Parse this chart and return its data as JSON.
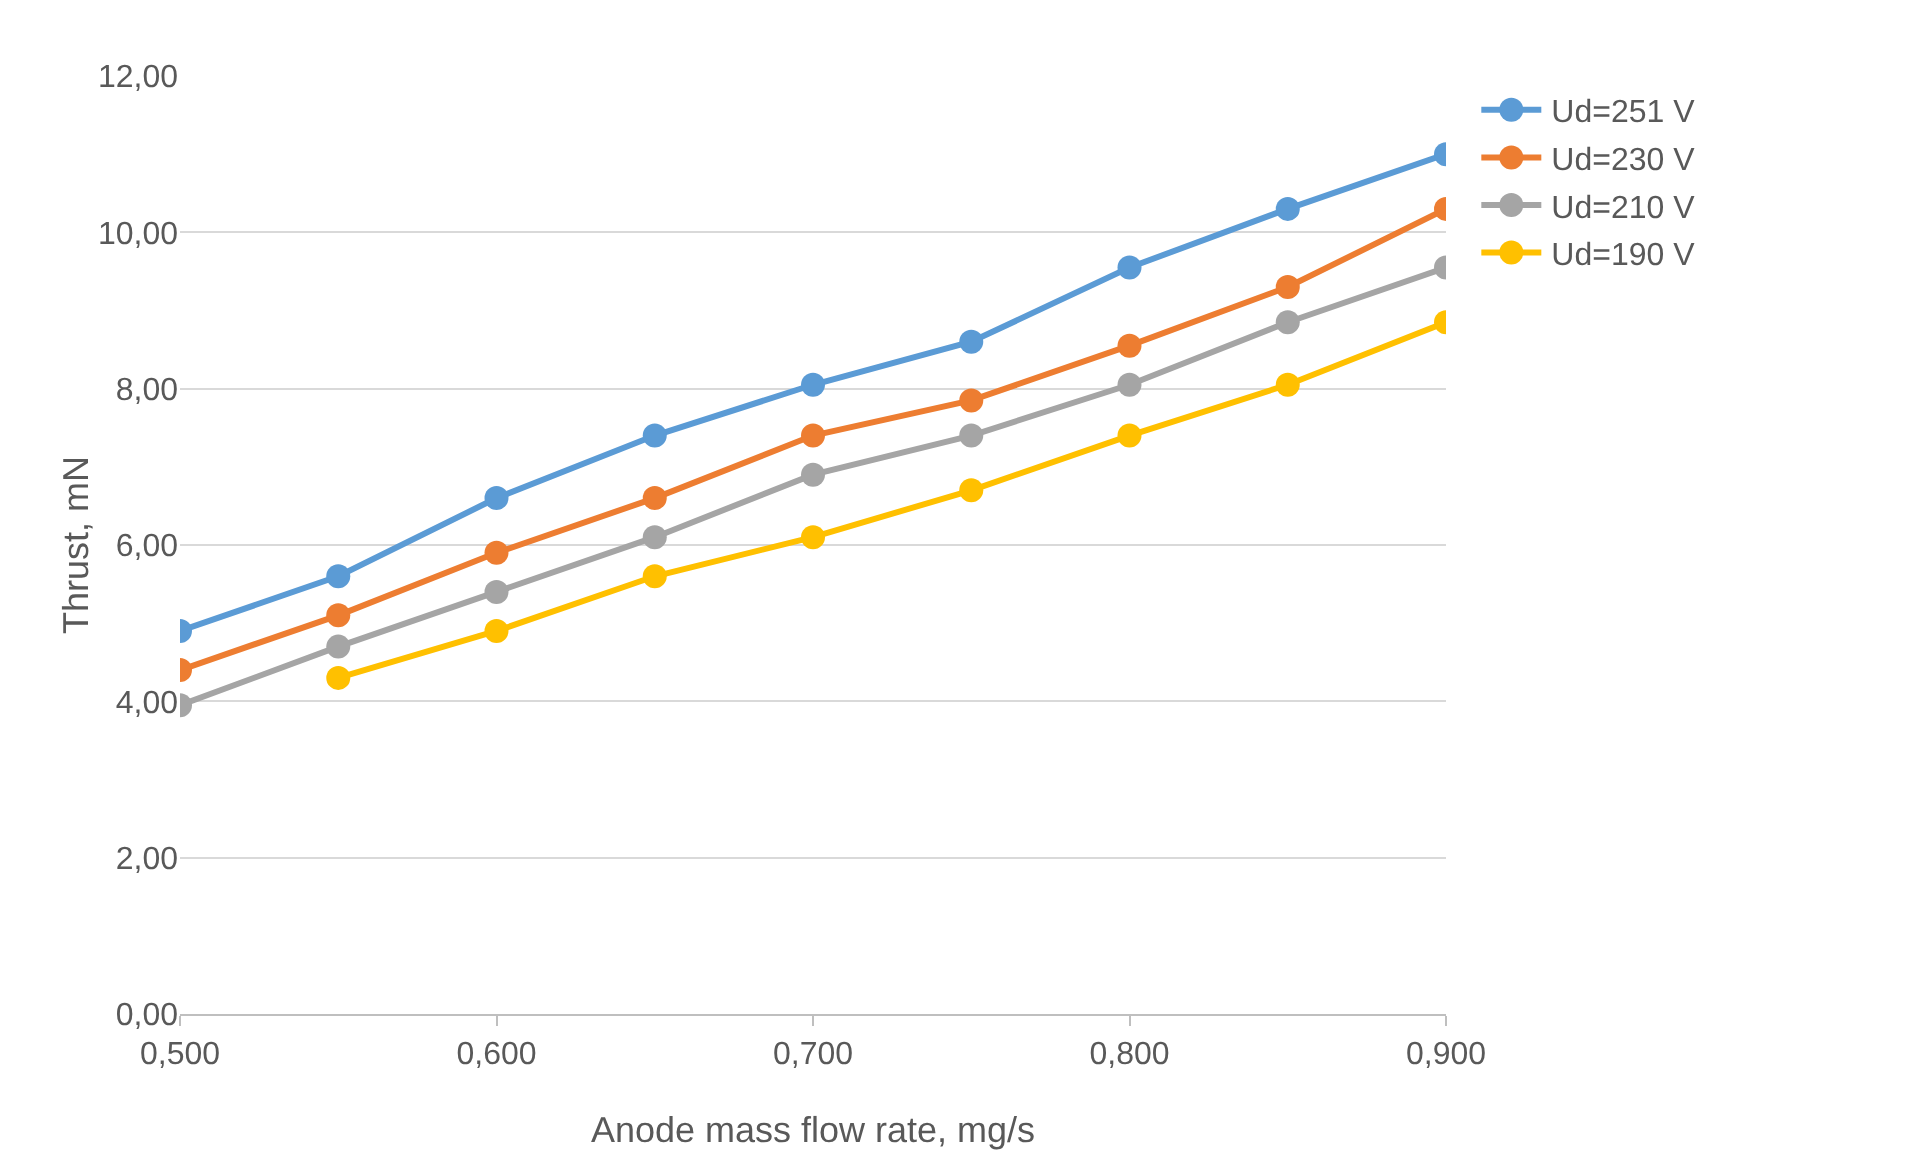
{
  "chart_data": {
    "type": "line",
    "xlabel": "Anode mass flow rate, mg/s",
    "ylabel": "Thrust, mN",
    "x": [
      0.5,
      0.55,
      0.6,
      0.65,
      0.7,
      0.75,
      0.8,
      0.85,
      0.9
    ],
    "series": [
      {
        "name": "Ud=251 V",
        "color": "#5b9bd5",
        "values": [
          4.9,
          5.6,
          6.6,
          7.4,
          8.05,
          8.6,
          9.55,
          10.3,
          11.0
        ]
      },
      {
        "name": "Ud=230 V",
        "color": "#ed7d31",
        "values": [
          4.4,
          5.1,
          5.9,
          6.6,
          7.4,
          7.85,
          8.55,
          9.3,
          10.3
        ]
      },
      {
        "name": "Ud=210 V",
        "color": "#a5a5a5",
        "values": [
          3.95,
          4.7,
          5.4,
          6.1,
          6.9,
          7.4,
          8.05,
          8.85,
          9.55
        ]
      },
      {
        "name": "Ud=190 V",
        "color": "#ffc000",
        "values": [
          null,
          4.3,
          4.9,
          5.6,
          6.1,
          6.7,
          7.4,
          8.05,
          8.85
        ]
      }
    ],
    "xlim": [
      0.5,
      0.9
    ],
    "xticks": [
      {
        "value": 0.5,
        "label": "0,500"
      },
      {
        "value": 0.6,
        "label": "0,600"
      },
      {
        "value": 0.7,
        "label": "0,700"
      },
      {
        "value": 0.8,
        "label": "0,800"
      },
      {
        "value": 0.9,
        "label": "0,900"
      }
    ],
    "ylim": [
      0,
      12
    ],
    "yticks": [
      {
        "value": 0,
        "label": "0,00"
      },
      {
        "value": 2,
        "label": "2,00"
      },
      {
        "value": 4,
        "label": "4,00"
      },
      {
        "value": 6,
        "label": "6,00"
      },
      {
        "value": 8,
        "label": "8,00"
      },
      {
        "value": 10,
        "label": "10,00"
      },
      {
        "value": 12,
        "label": "12,00"
      }
    ],
    "grid": "y",
    "legend": "right",
    "marker": "circle",
    "line_style": "solid"
  }
}
